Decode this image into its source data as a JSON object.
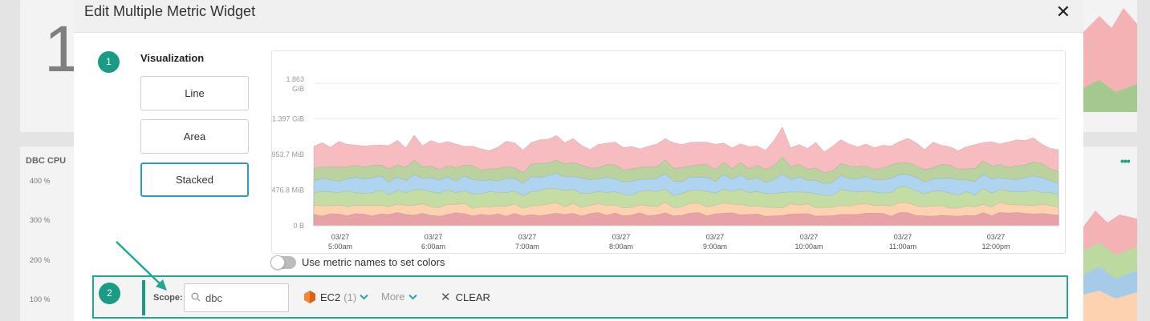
{
  "background": {
    "big_number": "1",
    "card_title": "DBC CPU",
    "ticks": [
      "400 %",
      "300 %",
      "200 %",
      "100 %"
    ]
  },
  "modal": {
    "title": "Edit Multiple Metric Widget",
    "close_icon": "close-icon",
    "step1": "1",
    "step2": "2",
    "visualization_label": "Visualization",
    "buttons": [
      "Line",
      "Area",
      "Stacked"
    ],
    "selected": "Stacked",
    "toggle_label": "Use metric names to set colors",
    "toggle_on": false
  },
  "chart_data": {
    "type": "area",
    "stacked": true,
    "y_ticks": [
      "1.863 GiB",
      "1.397 GiB",
      "953.7 MiB",
      "476.8 MiB",
      "0 B"
    ],
    "x_labels": [
      [
        "03/27",
        "5:00am"
      ],
      [
        "03/27",
        "6:00am"
      ],
      [
        "03/27",
        "7:00am"
      ],
      [
        "03/27",
        "8:00am"
      ],
      [
        "03/27",
        "9:00am"
      ],
      [
        "03/27",
        "10:00am"
      ],
      [
        "03/27",
        "11:00am"
      ],
      [
        "03/27",
        "12:00pm"
      ]
    ],
    "series_colors": [
      "#e8a1a6",
      "#fcd2b0",
      "#c4dda5",
      "#aed4ef",
      "#b9d29e",
      "#f6bcbf"
    ],
    "series_boundaries_approx": [
      150,
      268,
      450,
      623,
      785,
      1075
    ]
  },
  "scope": {
    "label": "Scope:",
    "input_value": "dbc",
    "filter_name": "EC2",
    "filter_count": "(1)",
    "more_label": "More",
    "clear_label": "CLEAR"
  },
  "colors": {
    "accent": "#1a9b86",
    "selected_border": "#2a9fbd"
  }
}
